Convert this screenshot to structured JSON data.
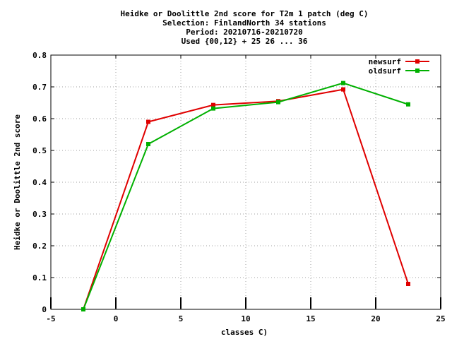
{
  "chart_data": {
    "type": "line",
    "title_lines": [
      "Heidke or Doolittle 2nd score  for T2m 1 patch (deg C)",
      "Selection: FinlandNorth     34 stations",
      "Period: 20210716-20210720",
      "Used {00,12} + 25 26 ... 36"
    ],
    "xlabel": "classes C)",
    "ylabel": "Heidke or Doolittle 2nd score",
    "xlim": [
      -5,
      25
    ],
    "ylim": [
      0,
      0.8
    ],
    "x_ticks": [
      "-5",
      "0",
      "5",
      "10",
      "15",
      "20",
      "25"
    ],
    "y_ticks": [
      "0",
      "0.1",
      "0.2",
      "0.3",
      "0.4",
      "0.5",
      "0.6",
      "0.7",
      "0.8"
    ],
    "x_tick_values": [
      -5,
      0,
      5,
      10,
      15,
      20,
      25
    ],
    "y_tick_values": [
      0,
      0.1,
      0.2,
      0.3,
      0.4,
      0.5,
      0.6,
      0.7,
      0.8
    ],
    "grid": true,
    "legend_position": "top-right",
    "series": [
      {
        "name": "newsurf",
        "color": "#e00000",
        "x": [
          -2.5,
          2.5,
          7.5,
          12.5,
          17.5,
          22.5
        ],
        "y": [
          0.0,
          0.59,
          0.643,
          0.655,
          0.692,
          0.08
        ]
      },
      {
        "name": "oldsurf",
        "color": "#00b000",
        "x": [
          -2.5,
          2.5,
          7.5,
          12.5,
          17.5,
          22.5
        ],
        "y": [
          0.0,
          0.52,
          0.632,
          0.652,
          0.712,
          0.645
        ]
      }
    ],
    "markers_x": [
      -5,
      0,
      5,
      10,
      15,
      20,
      25
    ]
  }
}
